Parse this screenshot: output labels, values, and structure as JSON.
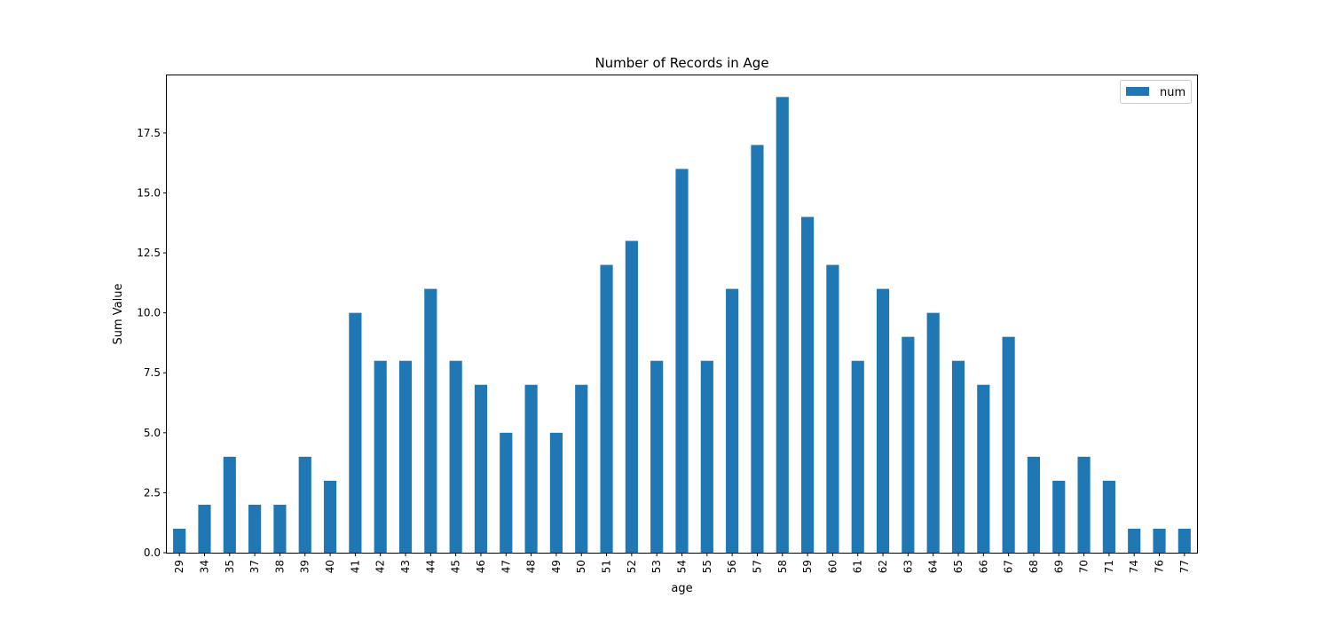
{
  "chart_data": {
    "type": "bar",
    "title": "Number of Records in Age",
    "xlabel": "age",
    "ylabel": "Sum Value",
    "categories": [
      "29",
      "34",
      "35",
      "37",
      "38",
      "39",
      "40",
      "41",
      "42",
      "43",
      "44",
      "45",
      "46",
      "47",
      "48",
      "49",
      "50",
      "51",
      "52",
      "53",
      "54",
      "55",
      "56",
      "57",
      "58",
      "59",
      "60",
      "61",
      "62",
      "63",
      "64",
      "65",
      "66",
      "67",
      "68",
      "69",
      "70",
      "71",
      "74",
      "76",
      "77"
    ],
    "series": [
      {
        "name": "num",
        "color": "#1f77b4",
        "values": [
          1,
          2,
          4,
          2,
          2,
          4,
          3,
          10,
          8,
          8,
          11,
          8,
          7,
          5,
          7,
          5,
          7,
          12,
          13,
          8,
          16,
          8,
          11,
          17,
          19,
          14,
          12,
          8,
          11,
          9,
          10,
          8,
          7,
          9,
          4,
          3,
          4,
          3,
          1,
          1,
          1
        ]
      }
    ],
    "ylim": [
      0,
      19.9
    ],
    "yticks": [
      0.0,
      2.5,
      5.0,
      7.5,
      10.0,
      12.5,
      15.0,
      17.5
    ],
    "ytick_labels": [
      "0.0",
      "2.5",
      "5.0",
      "7.5",
      "10.0",
      "12.5",
      "15.0",
      "17.5"
    ],
    "grid": false,
    "legend_position": "top-right"
  }
}
